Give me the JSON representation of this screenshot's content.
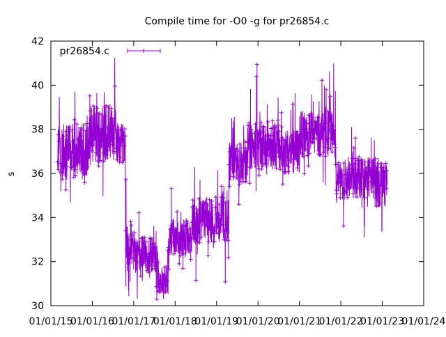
{
  "chart_data": {
    "type": "line",
    "title": "Compile time for -O0 -g for pr26854.c",
    "xlabel": "",
    "ylabel": "s",
    "ylim": [
      30,
      42
    ],
    "yticks": [
      "30",
      "32",
      "34",
      "36",
      "38",
      "40",
      "42"
    ],
    "xlim": [
      "2015-01-01",
      "2024-01-01"
    ],
    "xticks": [
      "01/01/15",
      "01/01/16",
      "01/01/17",
      "01/01/18",
      "01/01/19",
      "01/01/20",
      "01/01/21",
      "01/01/22",
      "01/01/23",
      "01/01/24"
    ],
    "grid": false,
    "legend": "top-left",
    "series": [
      {
        "name": "pr26854.c",
        "color": "#9400d3",
        "segments": [
          {
            "start": "2015-03-01",
            "end": "2015-12-01",
            "mean": 37.0,
            "spread": 1.6,
            "spikes": 2.5
          },
          {
            "start": "2015-12-01",
            "end": "2016-08-01",
            "mean": 37.8,
            "spread": 1.6,
            "spikes": 2.2
          },
          {
            "start": "2016-08-01",
            "end": "2016-10-20",
            "mean": 37.4,
            "spread": 1.2,
            "spikes": 2.0
          },
          {
            "start": "2016-10-20",
            "end": "2017-01-15",
            "mean": 32.6,
            "spread": 1.3,
            "spikes": 2.5
          },
          {
            "start": "2017-01-15",
            "end": "2017-08-01",
            "mean": 32.3,
            "spread": 1.0,
            "spikes": 2.0
          },
          {
            "start": "2017-08-01",
            "end": "2017-11-01",
            "mean": 31.2,
            "spread": 0.8,
            "spikes": 2.0
          },
          {
            "start": "2017-11-01",
            "end": "2018-06-01",
            "mean": 33.1,
            "spread": 1.1,
            "spikes": 2.0
          },
          {
            "start": "2018-06-01",
            "end": "2019-04-20",
            "mean": 33.9,
            "spread": 1.3,
            "spikes": 2.5
          },
          {
            "start": "2019-04-20",
            "end": "2019-10-01",
            "mean": 36.5,
            "spread": 1.2,
            "spikes": 2.5
          },
          {
            "start": "2019-10-01",
            "end": "2020-07-01",
            "mean": 37.3,
            "spread": 1.4,
            "spikes": 3.0
          },
          {
            "start": "2020-07-01",
            "end": "2021-01-01",
            "mean": 37.0,
            "spread": 1.3,
            "spikes": 2.8
          },
          {
            "start": "2021-01-01",
            "end": "2021-11-15",
            "mean": 37.8,
            "spread": 1.3,
            "spikes": 3.0
          },
          {
            "start": "2021-11-15",
            "end": "2022-03-01",
            "mean": 35.6,
            "spread": 1.1,
            "spikes": 2.0
          },
          {
            "start": "2022-03-01",
            "end": "2022-11-01",
            "mean": 35.8,
            "spread": 1.2,
            "spikes": 2.5
          },
          {
            "start": "2022-11-01",
            "end": "2023-02-15",
            "mean": 35.6,
            "spread": 1.4,
            "spikes": 2.5
          }
        ]
      }
    ]
  }
}
